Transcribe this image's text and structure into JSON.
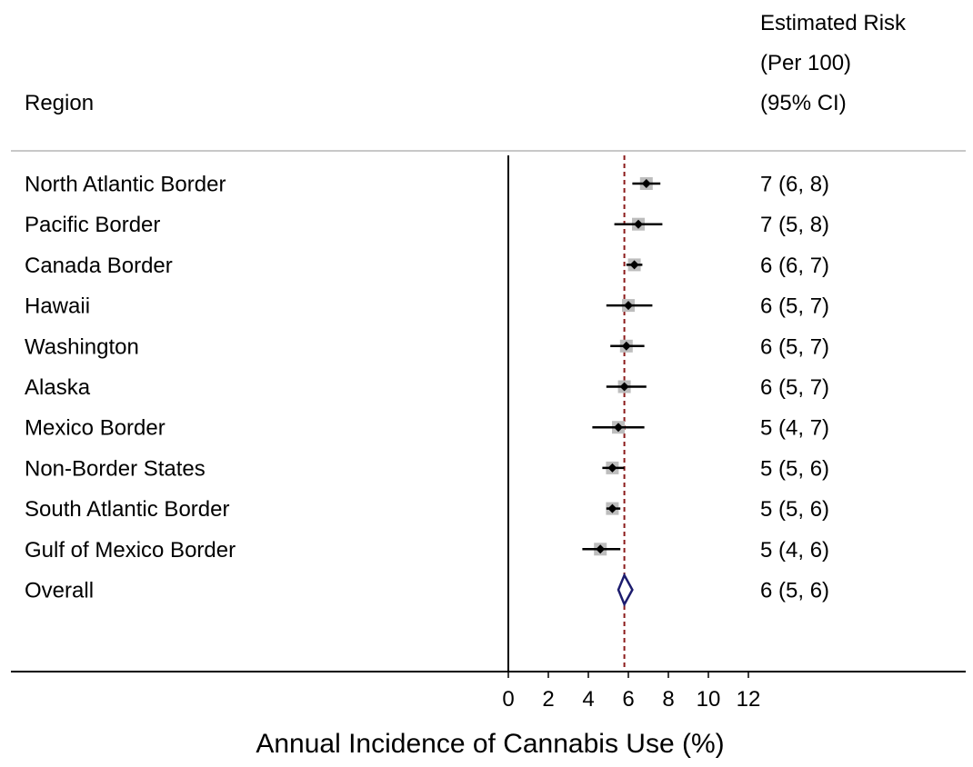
{
  "chart_data": {
    "type": "forest",
    "column_headers": {
      "region": "Region",
      "estimate": [
        "Estimated Risk",
        "(Per 100)",
        "(95% CI)"
      ]
    },
    "rows": [
      {
        "label": "North Atlantic Border",
        "estimate": 6.9,
        "lower": 6.2,
        "upper": 7.6,
        "text": "7 (6, 8)"
      },
      {
        "label": "Pacific Border",
        "estimate": 6.5,
        "lower": 5.3,
        "upper": 7.7,
        "text": "7 (5, 8)"
      },
      {
        "label": "Canada Border",
        "estimate": 6.3,
        "lower": 5.9,
        "upper": 6.7,
        "text": "6 (6, 7)"
      },
      {
        "label": "Hawaii",
        "estimate": 6.0,
        "lower": 4.9,
        "upper": 7.2,
        "text": "6 (5, 7)"
      },
      {
        "label": "Washington",
        "estimate": 5.9,
        "lower": 5.1,
        "upper": 6.8,
        "text": "6 (5, 7)"
      },
      {
        "label": "Alaska",
        "estimate": 5.8,
        "lower": 4.9,
        "upper": 6.9,
        "text": "6 (5, 7)"
      },
      {
        "label": "Mexico Border",
        "estimate": 5.5,
        "lower": 4.2,
        "upper": 6.8,
        "text": "5 (4, 7)"
      },
      {
        "label": "Non-Border States",
        "estimate": 5.2,
        "lower": 4.7,
        "upper": 5.8,
        "text": "5 (5, 6)"
      },
      {
        "label": "South Atlantic Border",
        "estimate": 5.2,
        "lower": 4.9,
        "upper": 5.6,
        "text": "5 (5, 6)"
      },
      {
        "label": "Gulf of Mexico Border",
        "estimate": 4.6,
        "lower": 3.7,
        "upper": 5.6,
        "text": "5 (4, 6)"
      }
    ],
    "overall": {
      "label": "Overall",
      "estimate": 5.8,
      "lower": 5.5,
      "upper": 6.2,
      "text": "6 (5, 6)"
    },
    "reference_line": 5.8,
    "xlabel": "Annual Incidence of Cannabis Use (%)",
    "xlim": [
      0,
      12
    ],
    "xticks": [
      0,
      2,
      4,
      6,
      8,
      10,
      12
    ],
    "colors": {
      "text": "#000000",
      "marker": "#000000",
      "weight_box": "#bdbdbd",
      "ci_line": "#000000",
      "reference_line": "#8b1a1a",
      "diamond": "#1c1c6e",
      "divider": "#c8c8c8"
    }
  }
}
